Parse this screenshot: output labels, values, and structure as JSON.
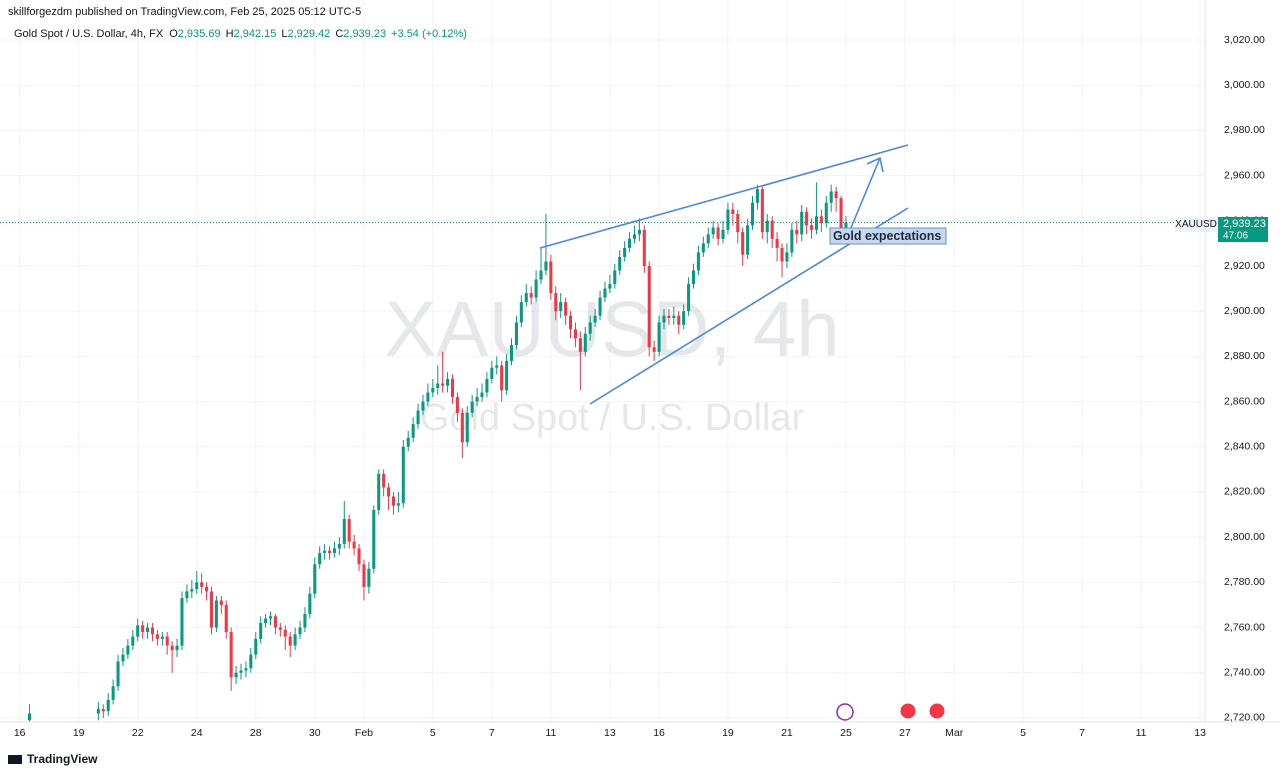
{
  "chart_data": {
    "type": "candlestick",
    "header": "skillforgezdm published on TradingView.com, Feb 25, 2025 05:12 UTC-5",
    "symbol_line": "Gold Spot / U.S. Dollar, 4h, FX",
    "ohlc_text": [
      "O",
      "2,935.69",
      "H",
      "2,942.15",
      "L",
      "2,929.42",
      "C",
      "2,939.23"
    ],
    "change_text": "+3.54 (+0.12%)",
    "watermark": [
      "XAUUSD, 4h",
      "Gold Spot / U.S. Dollar"
    ],
    "annotation": "Gold expectations",
    "price_tag": {
      "symbol": "XAUUSD",
      "price": "2,939.23",
      "countdown": "47:06"
    },
    "footer": "TradingView",
    "up_color": "#089981",
    "down_color": "#f23645",
    "grid": true,
    "xlim": [
      -6,
      239
    ],
    "ylim": [
      2718.2,
      3037.7
    ],
    "xticks": [
      {
        "value": -2,
        "label": "16"
      },
      {
        "value": 10,
        "label": "19"
      },
      {
        "value": 22,
        "label": "22"
      },
      {
        "value": 34,
        "label": "24"
      },
      {
        "value": 46,
        "label": "28"
      },
      {
        "value": 58,
        "label": "30"
      },
      {
        "value": 68,
        "label": "Feb"
      },
      {
        "value": 82,
        "label": "5"
      },
      {
        "value": 94,
        "label": "7"
      },
      {
        "value": 106,
        "label": "11"
      },
      {
        "value": 118,
        "label": "13"
      },
      {
        "value": 128,
        "label": "16"
      },
      {
        "value": 142,
        "label": "19"
      },
      {
        "value": 154,
        "label": "21"
      },
      {
        "value": 166,
        "label": "25"
      },
      {
        "value": 178,
        "label": "27"
      },
      {
        "value": 188,
        "label": "Mar"
      },
      {
        "value": 202,
        "label": "5"
      },
      {
        "value": 214,
        "label": "7"
      },
      {
        "value": 226,
        "label": "11"
      },
      {
        "value": 238,
        "label": "13"
      }
    ],
    "yticks": [
      {
        "value": 2720,
        "label": "2,720.00"
      },
      {
        "value": 2740,
        "label": "2,740.00"
      },
      {
        "value": 2760,
        "label": "2,760.00"
      },
      {
        "value": 2780,
        "label": "2,780.00"
      },
      {
        "value": 2800,
        "label": "2,800.00"
      },
      {
        "value": 2820,
        "label": "2,820.00"
      },
      {
        "value": 2840,
        "label": "2,840.00"
      },
      {
        "value": 2860,
        "label": "2,860.00"
      },
      {
        "value": 2880,
        "label": "2,880.00"
      },
      {
        "value": 2900,
        "label": "2,900.00"
      },
      {
        "value": 2920,
        "label": "2,920.00"
      },
      {
        "value": 2940,
        "label": "2,940.00"
      },
      {
        "value": 2960,
        "label": "2,960.00"
      },
      {
        "value": 2980,
        "label": "2,980.00"
      },
      {
        "value": 3000,
        "label": "3,000.00"
      },
      {
        "value": 3020,
        "label": "3,020.00"
      }
    ],
    "x": [
      0,
      14,
      15,
      16,
      17,
      18,
      19,
      20,
      21,
      22,
      23,
      24,
      25,
      26,
      27,
      28,
      29,
      30,
      31,
      32,
      33,
      34,
      35,
      36,
      37,
      38,
      39,
      40,
      41,
      42,
      43,
      44,
      45,
      46,
      47,
      48,
      49,
      50,
      51,
      52,
      53,
      54,
      55,
      56,
      57,
      58,
      59,
      60,
      61,
      62,
      63,
      64,
      65,
      66,
      67,
      68,
      69,
      70,
      71,
      72,
      73,
      74,
      75,
      76,
      77,
      78,
      79,
      80,
      81,
      82,
      83,
      84,
      85,
      86,
      87,
      88,
      89,
      90,
      91,
      92,
      93,
      94,
      95,
      96,
      97,
      98,
      99,
      100,
      101,
      102,
      103,
      104,
      105,
      106,
      107,
      108,
      109,
      110,
      111,
      112,
      113,
      114,
      115,
      116,
      117,
      118,
      119,
      120,
      121,
      122,
      123,
      124,
      125,
      126,
      127,
      128,
      129,
      130,
      131,
      132,
      133,
      134,
      135,
      136,
      137,
      138,
      139,
      140,
      141,
      142,
      143,
      144,
      145,
      146,
      147,
      148,
      149,
      150,
      151,
      152,
      153,
      154,
      155,
      156,
      157,
      158,
      159,
      160,
      161,
      162,
      163,
      164,
      165,
      166
    ],
    "open": [
      2719,
      2722,
      2724,
      2723,
      2728,
      2734,
      2745,
      2748,
      2752,
      2756,
      2761,
      2758,
      2760,
      2757,
      2755,
      2756,
      2752,
      2750,
      2752,
      2773,
      2776,
      2777,
      2780,
      2778,
      2776,
      2760,
      2772,
      2770,
      2758,
      2738,
      2740,
      2741,
      2742,
      2748,
      2755,
      2762,
      2764,
      2765,
      2760,
      2759,
      2756,
      2752,
      2757,
      2760,
      2766,
      2775,
      2788,
      2793,
      2794,
      2793,
      2795,
      2797,
      2808,
      2798,
      2795,
      2788,
      2778,
      2786,
      2812,
      2828,
      2822,
      2818,
      2814,
      2815,
      2840,
      2844,
      2850,
      2856,
      2860,
      2864,
      2866,
      2868,
      2867,
      2870,
      2862,
      2855,
      2842,
      2855,
      2860,
      2862,
      2864,
      2870,
      2875,
      2876,
      2865,
      2878,
      2885,
      2895,
      2904,
      2908,
      2906,
      2914,
      2918,
      2922,
      2908,
      2900,
      2904,
      2898,
      2892,
      2888,
      2882,
      2890,
      2895,
      2898,
      2906,
      2910,
      2912,
      2918,
      2924,
      2928,
      2932,
      2934,
      2936,
      2920,
      2884,
      2882,
      2895,
      2898,
      2897,
      2898,
      2894,
      2900,
      2912,
      2918,
      2926,
      2930,
      2934,
      2937,
      2932,
      2936,
      2945,
      2943,
      2935,
      2925,
      2938,
      2948,
      2954,
      2935,
      2940,
      2932,
      2928,
      2922,
      2926,
      2936,
      2934,
      2944,
      2938,
      2936,
      2942,
      2939,
      2948,
      2953,
      2950,
      2935.69
    ],
    "high": [
      2726,
      2727,
      2726,
      2731,
      2737,
      2748,
      2751,
      2755,
      2759,
      2764,
      2763,
      2762,
      2762,
      2759,
      2758,
      2758,
      2754,
      2755,
      2776,
      2779,
      2781,
      2785,
      2784,
      2780,
      2778,
      2774,
      2774,
      2772,
      2760,
      2743,
      2744,
      2745,
      2751,
      2758,
      2765,
      2766,
      2767,
      2766,
      2762,
      2761,
      2758,
      2760,
      2763,
      2769,
      2778,
      2791,
      2796,
      2797,
      2796,
      2798,
      2800,
      2816,
      2810,
      2801,
      2797,
      2790,
      2789,
      2814,
      2830,
      2830,
      2824,
      2820,
      2820,
      2843,
      2847,
      2853,
      2859,
      2863,
      2868,
      2870,
      2876,
      2882,
      2873,
      2872,
      2864,
      2857,
      2858,
      2863,
      2866,
      2868,
      2873,
      2878,
      2880,
      2878,
      2881,
      2888,
      2898,
      2907,
      2912,
      2911,
      2918,
      2928,
      2943,
      2925,
      2911,
      2908,
      2906,
      2900,
      2895,
      2891,
      2893,
      2898,
      2901,
      2909,
      2913,
      2916,
      2921,
      2927,
      2931,
      2935,
      2938,
      2941,
      2938,
      2922,
      2887,
      2898,
      2901,
      2901,
      2902,
      2900,
      2903,
      2915,
      2921,
      2929,
      2933,
      2937,
      2940,
      2939,
      2940,
      2948,
      2948,
      2945,
      2937,
      2941,
      2951,
      2956,
      2955,
      2943,
      2942,
      2935,
      2930,
      2930,
      2939,
      2940,
      2947,
      2946,
      2941,
      2957,
      2945,
      2951,
      2956,
      2955,
      2951,
      2942.15
    ],
    "low": [
      2715,
      2719,
      2720,
      2721,
      2726,
      2732,
      2743,
      2746,
      2750,
      2754,
      2755,
      2755,
      2754,
      2752,
      2752,
      2748,
      2740,
      2747,
      2750,
      2771,
      2773,
      2775,
      2775,
      2772,
      2757,
      2758,
      2766,
      2755,
      2732,
      2735,
      2737,
      2738,
      2740,
      2746,
      2753,
      2760,
      2761,
      2757,
      2756,
      2750,
      2747,
      2750,
      2755,
      2758,
      2764,
      2773,
      2786,
      2790,
      2790,
      2791,
      2792,
      2795,
      2795,
      2792,
      2785,
      2772,
      2775,
      2784,
      2810,
      2818,
      2812,
      2810,
      2811,
      2813,
      2838,
      2842,
      2848,
      2854,
      2858,
      2862,
      2863,
      2864,
      2864,
      2859,
      2851,
      2835,
      2840,
      2853,
      2858,
      2860,
      2862,
      2868,
      2872,
      2860,
      2863,
      2876,
      2883,
      2893,
      2902,
      2903,
      2904,
      2912,
      2916,
      2905,
      2896,
      2897,
      2894,
      2888,
      2884,
      2865,
      2880,
      2887,
      2893,
      2896,
      2904,
      2908,
      2910,
      2916,
      2922,
      2926,
      2930,
      2931,
      2917,
      2880,
      2878,
      2880,
      2892,
      2894,
      2894,
      2890,
      2892,
      2898,
      2910,
      2916,
      2924,
      2928,
      2932,
      2929,
      2930,
      2934,
      2938,
      2930,
      2920,
      2923,
      2936,
      2945,
      2932,
      2930,
      2928,
      2922,
      2915,
      2919,
      2924,
      2930,
      2931,
      2934,
      2932,
      2934,
      2935,
      2937,
      2944,
      2944,
      2932,
      2929.42
    ],
    "close": [
      2722,
      2724,
      2723,
      2728,
      2734,
      2745,
      2748,
      2752,
      2756,
      2761,
      2758,
      2760,
      2757,
      2755,
      2756,
      2752,
      2750,
      2752,
      2773,
      2776,
      2777,
      2780,
      2778,
      2776,
      2760,
      2772,
      2770,
      2758,
      2738,
      2740,
      2741,
      2742,
      2748,
      2755,
      2762,
      2764,
      2765,
      2760,
      2759,
      2756,
      2752,
      2757,
      2760,
      2766,
      2775,
      2788,
      2793,
      2794,
      2793,
      2795,
      2797,
      2808,
      2798,
      2795,
      2788,
      2778,
      2786,
      2812,
      2828,
      2822,
      2818,
      2814,
      2815,
      2840,
      2844,
      2850,
      2856,
      2860,
      2864,
      2866,
      2868,
      2867,
      2870,
      2862,
      2855,
      2842,
      2855,
      2860,
      2862,
      2864,
      2870,
      2875,
      2876,
      2865,
      2878,
      2885,
      2895,
      2904,
      2908,
      2906,
      2914,
      2918,
      2922,
      2908,
      2900,
      2904,
      2898,
      2892,
      2888,
      2882,
      2890,
      2895,
      2898,
      2906,
      2910,
      2912,
      2918,
      2924,
      2928,
      2932,
      2934,
      2936,
      2920,
      2884,
      2882,
      2895,
      2898,
      2897,
      2898,
      2894,
      2900,
      2912,
      2918,
      2926,
      2930,
      2934,
      2937,
      2932,
      2936,
      2945,
      2943,
      2935,
      2925,
      2938,
      2948,
      2954,
      2935,
      2940,
      2932,
      2928,
      2922,
      2926,
      2936,
      2934,
      2944,
      2938,
      2936,
      2942,
      2939,
      2948,
      2953,
      2950,
      2935.69,
      2939.23
    ]
  }
}
